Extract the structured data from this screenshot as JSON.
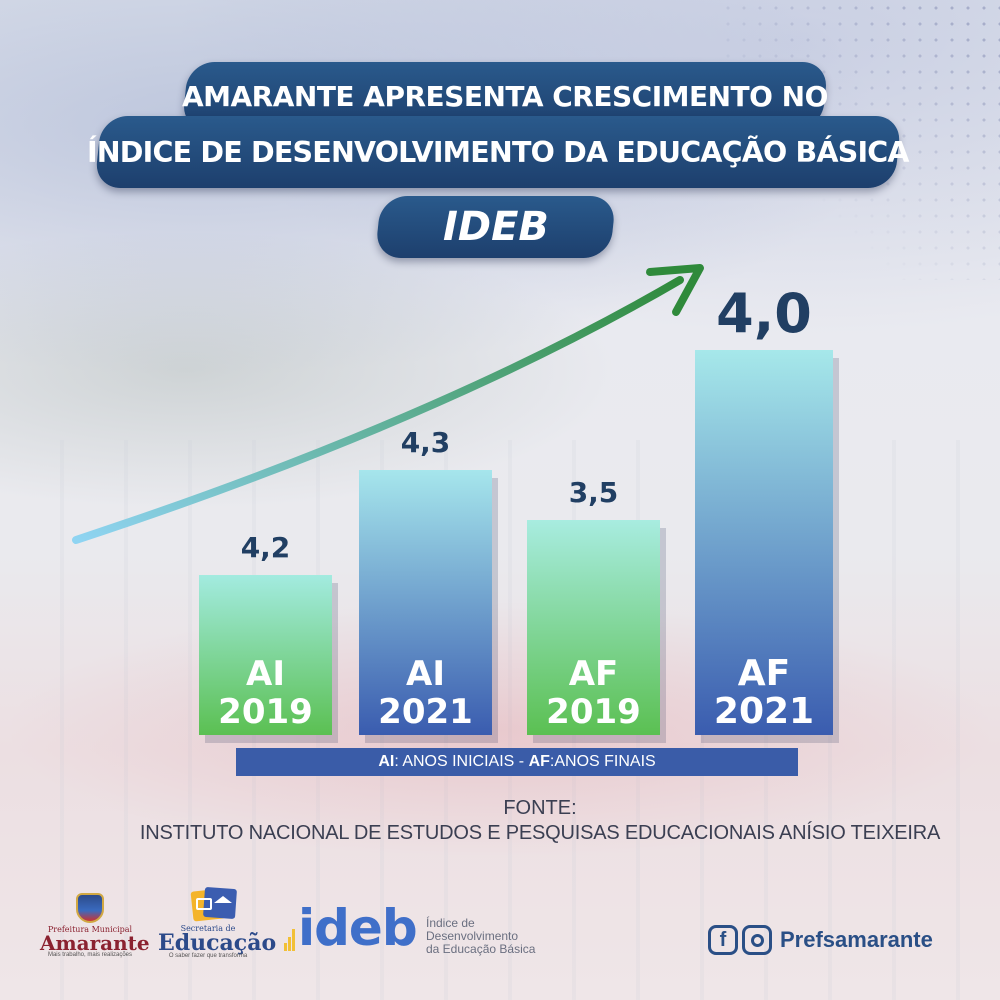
{
  "title": {
    "line1": "AMARANTE APRESENTA CRESCIMENTO NO",
    "line2": "ÍNDICE DE DESENVOLVIMENTO DA EDUCAÇÃO BÁSICA",
    "line3": "IDEB"
  },
  "chart_data": {
    "type": "bar",
    "categories": [
      [
        "AI",
        "2019"
      ],
      [
        "AI",
        "2021"
      ],
      [
        "AF",
        "2019"
      ],
      [
        "AF",
        "2021"
      ]
    ],
    "values": [
      4.2,
      4.3,
      3.5,
      4.0
    ],
    "value_labels": [
      "4,2",
      "4,3",
      "3,5",
      "4,0"
    ],
    "bar_gradients": [
      [
        "#a3ebe0",
        "#5bc052"
      ],
      [
        "#a6e6ec",
        "#3a5caf"
      ],
      [
        "#a8ece0",
        "#5bc052"
      ],
      [
        "#a6e8ea",
        "#3a5caf"
      ]
    ],
    "arrow_colors": [
      "#8fd4f2",
      "#2f8a3b"
    ],
    "title": "",
    "xlabel": "",
    "ylabel": "",
    "grid": false
  },
  "legend": {
    "ai_abbr": "AI",
    "ai_text": ": ANOS INICIAIS - ",
    "af_abbr": "AF",
    "af_text": ":ANOS FINAIS"
  },
  "source": {
    "heading": "FONTE:",
    "body": "INSTITUTO NACIONAL DE ESTUDOS E PESQUISAS EDUCACIONAIS ANÍSIO TEIXEIRA"
  },
  "footer": {
    "amarante_small": "Prefeitura Municipal",
    "amarante_name": "Amarante",
    "amarante_tag": "Mais trabalho, mais realizações",
    "edu_small": "Secretaria de",
    "edu_name": "Educação",
    "edu_tag": "O saber fazer que transforma",
    "ideb_word": "ideb",
    "ideb_desc_1": "Índice de",
    "ideb_desc_2": "Desenvolvimento",
    "ideb_desc_3": "da Educação Básica",
    "social_handle": "Prefsamarante"
  }
}
